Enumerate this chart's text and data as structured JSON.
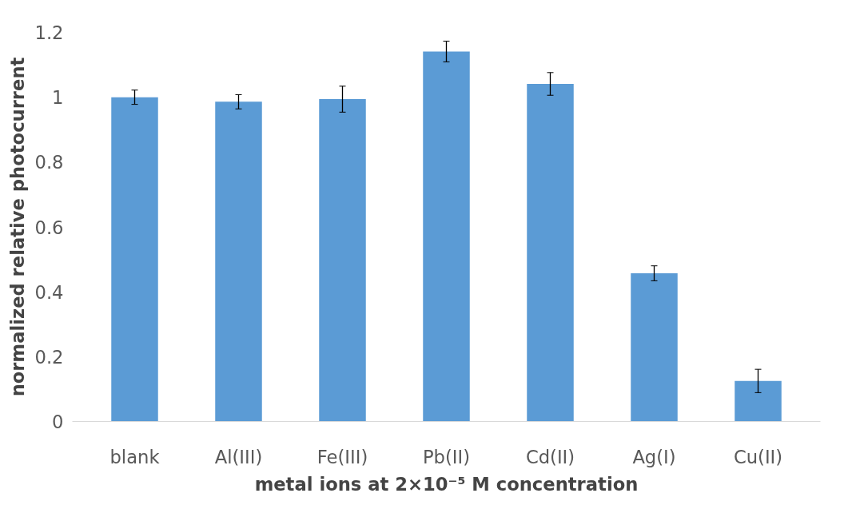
{
  "chart_data": {
    "type": "bar",
    "xlabel": "metal ions at 2×10⁻⁵ M concentration",
    "ylabel": "normalized relative photocurrent",
    "categories": [
      "blank",
      "Al(III)",
      "Fe(III)",
      "Pb(II)",
      "Cd(II)",
      "Ag(I)",
      "Cu(II)"
    ],
    "values": [
      1.0,
      0.986,
      0.994,
      1.141,
      1.041,
      0.457,
      0.125
    ],
    "errors": [
      0.022,
      0.022,
      0.04,
      0.032,
      0.035,
      0.023,
      0.036
    ],
    "color": "#5b9bd5",
    "ylim": [
      0,
      1.2
    ],
    "yticks": [
      0,
      0.2,
      0.4,
      0.6,
      0.8,
      1,
      1.2
    ],
    "grid": false
  }
}
